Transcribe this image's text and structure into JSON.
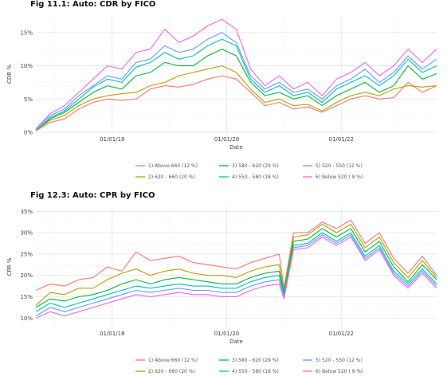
{
  "colors": {
    "above660": "#f8766d",
    "r620_660": "#b79f00",
    "r580_620": "#00ba38",
    "r550_580": "#00bfc4",
    "r520_550": "#619cff",
    "below520": "#f564e3"
  },
  "chart_data": [
    {
      "type": "line",
      "title": "Fig 11.1: Auto: CDR by FICO",
      "xlabel": "Date",
      "ylabel": "CDR %",
      "x_ticks": [
        "01/01/18",
        "01/01/20",
        "01/01/22"
      ],
      "y_ticks": [
        "0%",
        "5%",
        "10%",
        "15%"
      ],
      "ylim": [
        0,
        17.5
      ],
      "x_range": [
        "2016-09-01",
        "2023-09-01"
      ],
      "x": [
        "2016-09",
        "2016-12",
        "2017-03",
        "2017-06",
        "2017-09",
        "2017-12",
        "2018-03",
        "2018-06",
        "2018-09",
        "2018-12",
        "2019-03",
        "2019-06",
        "2019-09",
        "2019-12",
        "2020-03",
        "2020-06",
        "2020-09",
        "2020-12",
        "2021-03",
        "2021-06",
        "2021-09",
        "2021-12",
        "2022-03",
        "2022-06",
        "2022-09",
        "2022-12",
        "2023-03",
        "2023-06",
        "2023-09"
      ],
      "series": [
        {
          "name": "1) Above 660 (12 %)",
          "color_key": "above660",
          "values": [
            0.2,
            1.5,
            2.0,
            3.5,
            4.5,
            5.0,
            4.8,
            5.0,
            6.5,
            7.0,
            6.8,
            7.2,
            8.0,
            8.5,
            8.0,
            6.0,
            4.0,
            4.5,
            3.5,
            3.8,
            3.0,
            4.0,
            5.0,
            5.5,
            5.0,
            5.2,
            7.5,
            6.0,
            7.0
          ]
        },
        {
          "name": "2) 620 - 660 (20 %)",
          "color_key": "r620_660",
          "values": [
            0.3,
            1.8,
            2.5,
            4.0,
            5.0,
            5.5,
            5.8,
            6.0,
            7.0,
            7.5,
            8.5,
            9.0,
            9.5,
            10.0,
            9.0,
            6.5,
            4.5,
            5.0,
            4.0,
            4.2,
            3.2,
            4.5,
            5.5,
            6.0,
            5.5,
            6.5,
            7.0,
            6.8,
            7.0
          ]
        },
        {
          "name": "3) 580 - 620 (29 %)",
          "color_key": "r580_620",
          "values": [
            0.3,
            2.0,
            3.0,
            4.5,
            6.0,
            7.0,
            6.5,
            8.5,
            9.0,
            10.5,
            10.0,
            10.0,
            11.5,
            12.5,
            11.5,
            7.5,
            5.5,
            6.0,
            5.0,
            5.5,
            4.0,
            5.5,
            6.5,
            7.5,
            6.0,
            7.0,
            10.0,
            8.0,
            8.8
          ]
        },
        {
          "name": "4) 550 - 580 (18 %)",
          "color_key": "r550_580",
          "values": [
            0.3,
            2.2,
            3.2,
            5.0,
            6.8,
            8.0,
            7.5,
            9.8,
            10.5,
            12.0,
            11.0,
            11.5,
            13.0,
            14.0,
            13.0,
            8.0,
            6.0,
            7.0,
            5.5,
            6.0,
            4.5,
            6.5,
            7.5,
            8.5,
            7.0,
            8.5,
            11.0,
            9.0,
            10.0
          ]
        },
        {
          "name": "5) 520 - 550 (12 %)",
          "color_key": "r520_550",
          "values": [
            0.5,
            2.5,
            3.5,
            5.5,
            7.0,
            8.5,
            8.0,
            10.5,
            11.0,
            13.0,
            12.0,
            12.5,
            14.0,
            15.0,
            13.5,
            8.5,
            6.5,
            7.5,
            6.0,
            6.5,
            5.0,
            7.0,
            8.0,
            9.5,
            7.5,
            9.0,
            11.5,
            9.5,
            11.0
          ]
        },
        {
          "name": "6) Below 520 ( 9 %)",
          "color_key": "below520",
          "values": [
            0.5,
            2.8,
            4.0,
            6.0,
            8.0,
            10.0,
            9.5,
            12.0,
            12.5,
            15.5,
            13.5,
            14.5,
            16.0,
            17.0,
            15.5,
            9.5,
            7.0,
            8.5,
            6.5,
            7.5,
            5.5,
            8.0,
            9.0,
            10.5,
            8.5,
            10.0,
            12.5,
            10.5,
            12.5
          ]
        }
      ],
      "legend_position": "bottom",
      "grid": true
    },
    {
      "type": "line",
      "title": "Fig 12.3: Auto: CPR by FICO",
      "xlabel": "Date",
      "ylabel": "CPR %",
      "x_ticks": [
        "01/01/18",
        "01/01/20",
        "01/01/22"
      ],
      "y_ticks": [
        "10%",
        "15%",
        "20%",
        "25%",
        "30%",
        "35%"
      ],
      "ylim": [
        8,
        36
      ],
      "x_range": [
        "2016-09-01",
        "2023-09-01"
      ],
      "x": [
        "2016-09",
        "2016-12",
        "2017-03",
        "2017-06",
        "2017-09",
        "2017-12",
        "2018-03",
        "2018-06",
        "2018-09",
        "2018-12",
        "2019-03",
        "2019-06",
        "2019-09",
        "2019-12",
        "2020-03",
        "2020-06",
        "2020-09",
        "2020-12",
        "2021-01",
        "2021-03",
        "2021-06",
        "2021-09",
        "2021-12",
        "2022-03",
        "2022-06",
        "2022-09",
        "2022-12",
        "2023-03",
        "2023-06",
        "2023-09"
      ],
      "series": [
        {
          "name": "1) Above 660 (12 %)",
          "color_key": "above660",
          "values": [
            16.5,
            18.0,
            17.5,
            19.0,
            19.5,
            22.0,
            21.0,
            25.5,
            23.5,
            24.0,
            24.5,
            23.0,
            22.5,
            22.0,
            21.5,
            23.0,
            24.0,
            25.0,
            17.0,
            30.0,
            30.0,
            32.5,
            31.0,
            33.0,
            27.5,
            30.0,
            24.0,
            20.5,
            24.5,
            20.0
          ]
        },
        {
          "name": "2) 620 - 660 (20 %)",
          "color_key": "r620_660",
          "values": [
            13.0,
            16.0,
            15.5,
            17.0,
            17.0,
            19.0,
            20.5,
            21.5,
            20.0,
            21.0,
            21.5,
            20.5,
            20.0,
            20.0,
            19.5,
            21.0,
            22.0,
            22.5,
            16.5,
            29.0,
            29.5,
            32.0,
            30.0,
            32.0,
            26.5,
            29.0,
            23.0,
            19.5,
            23.5,
            19.5
          ]
        },
        {
          "name": "3) 580 - 620 (29 %)",
          "color_key": "r580_620",
          "values": [
            12.5,
            14.5,
            14.0,
            15.0,
            15.5,
            16.5,
            18.0,
            19.0,
            18.0,
            19.0,
            19.5,
            19.0,
            18.5,
            18.0,
            18.0,
            19.5,
            20.5,
            21.0,
            16.0,
            28.0,
            28.5,
            31.0,
            29.0,
            31.0,
            25.5,
            28.0,
            22.0,
            18.5,
            22.5,
            19.0
          ]
        },
        {
          "name": "4) 550 - 580 (18 %)",
          "color_key": "r550_580",
          "values": [
            11.5,
            13.5,
            12.5,
            13.5,
            14.5,
            15.5,
            16.5,
            17.5,
            17.0,
            17.5,
            18.0,
            17.5,
            17.5,
            17.0,
            17.0,
            18.5,
            19.5,
            20.0,
            15.5,
            27.0,
            27.5,
            30.0,
            28.0,
            30.0,
            24.5,
            27.0,
            21.0,
            18.0,
            21.5,
            18.0
          ]
        },
        {
          "name": "5) 520 - 550 (12 %)",
          "color_key": "r520_550",
          "values": [
            10.5,
            12.5,
            11.5,
            12.5,
            13.5,
            14.5,
            15.5,
            16.5,
            16.0,
            16.5,
            17.0,
            16.5,
            16.5,
            16.0,
            16.0,
            17.5,
            18.5,
            19.0,
            15.0,
            26.5,
            27.0,
            29.5,
            27.5,
            29.5,
            24.0,
            26.5,
            20.5,
            17.5,
            21.0,
            17.5
          ]
        },
        {
          "name": "6) Below 520 ( 9 %)",
          "color_key": "below520",
          "values": [
            10.0,
            11.5,
            10.5,
            11.5,
            12.5,
            13.5,
            14.5,
            15.5,
            15.0,
            15.5,
            16.0,
            15.5,
            15.5,
            15.0,
            15.0,
            16.5,
            17.5,
            18.0,
            14.5,
            26.0,
            26.5,
            29.0,
            27.0,
            29.0,
            23.5,
            26.0,
            20.0,
            17.0,
            20.5,
            17.0
          ]
        }
      ],
      "legend_position": "bottom",
      "grid": true
    }
  ]
}
